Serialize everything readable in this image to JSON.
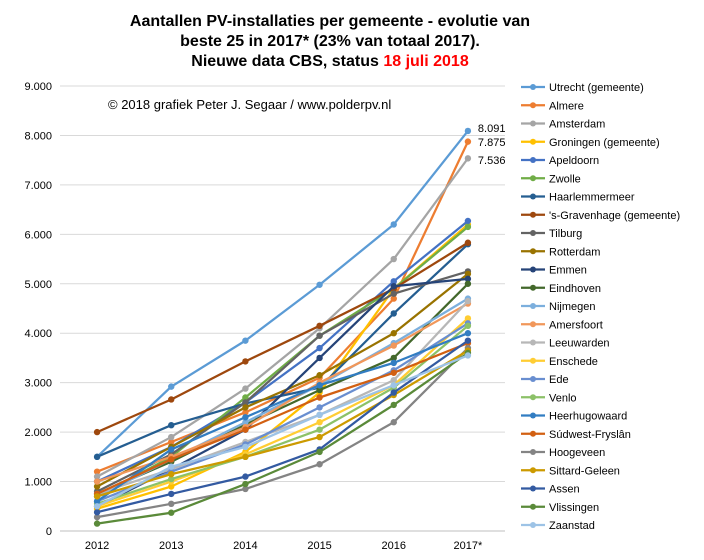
{
  "chart_data": {
    "type": "line",
    "title_line1": "Aantallen PV-installaties  per gemeente - evolutie van",
    "title_line2": "beste 25 in 2017* (23% van totaal 2017).",
    "title_line3_prefix": "Nieuwe data CBS, status ",
    "title_line3_date": "18 juli 2018",
    "credit": "© 2018  grafiek Peter J. Segaar / www.polderpv.nl",
    "categories": [
      "2012",
      "2013",
      "2014",
      "2015",
      "2016",
      "2017*"
    ],
    "ylim": [
      0,
      9000
    ],
    "yticks": [
      {
        "value": 0,
        "label": "0"
      },
      {
        "value": 1000,
        "label": "1.000"
      },
      {
        "value": 2000,
        "label": "2.000"
      },
      {
        "value": 3000,
        "label": "3.000"
      },
      {
        "value": 4000,
        "label": "4.000"
      },
      {
        "value": 5000,
        "label": "5.000"
      },
      {
        "value": 6000,
        "label": "6.000"
      },
      {
        "value": 7000,
        "label": "7.000"
      },
      {
        "value": 8000,
        "label": "8.000"
      },
      {
        "value": 9000,
        "label": "9.000"
      }
    ],
    "grid": true,
    "legend_position": "right",
    "end_labels": [
      {
        "series": 0,
        "label": "8.091"
      },
      {
        "series": 1,
        "label": "7.875"
      },
      {
        "series": 2,
        "label": "7.536"
      }
    ],
    "series": [
      {
        "name": "Utrecht (gemeente)",
        "color": "#5b9bd5",
        "values": [
          1500,
          2920,
          3850,
          4980,
          6200,
          8091
        ]
      },
      {
        "name": "Almere",
        "color": "#ed7d31",
        "values": [
          1200,
          1800,
          2400,
          3100,
          4700,
          7875
        ]
      },
      {
        "name": "Amsterdam",
        "color": "#a5a5a5",
        "values": [
          1100,
          1900,
          2880,
          4100,
          5500,
          7536
        ]
      },
      {
        "name": "Groningen (gemeente)",
        "color": "#ffc000",
        "values": [
          450,
          900,
          1600,
          2800,
          4900,
          6200
        ]
      },
      {
        "name": "Apeldoorn",
        "color": "#4472c4",
        "values": [
          1000,
          1700,
          2600,
          3700,
          5050,
          6270
        ]
      },
      {
        "name": "Zwolle",
        "color": "#70ad47",
        "values": [
          700,
          1500,
          2700,
          3950,
          4900,
          6150
        ]
      },
      {
        "name": "Haarlemmermeer",
        "color": "#255e91",
        "values": [
          1500,
          2140,
          2580,
          2900,
          4400,
          5800
        ]
      },
      {
        "name": "'s-Gravenhage (gemeente)",
        "color": "#9e480e",
        "values": [
          2000,
          2660,
          3430,
          4150,
          4900,
          5830
        ]
      },
      {
        "name": "Tilburg",
        "color": "#636363",
        "values": [
          800,
          1550,
          2600,
          3950,
          4800,
          5250
        ]
      },
      {
        "name": "Rotterdam",
        "color": "#997300",
        "values": [
          900,
          1700,
          2500,
          3150,
          4000,
          5200
        ]
      },
      {
        "name": "Emmen",
        "color": "#264478",
        "values": [
          500,
          1250,
          2050,
          3500,
          4950,
          5100
        ]
      },
      {
        "name": "Eindhoven",
        "color": "#43682b",
        "values": [
          750,
          1400,
          2150,
          2850,
          3500,
          5000
        ]
      },
      {
        "name": "Nijmegen",
        "color": "#7cafdd",
        "values": [
          700,
          1450,
          2200,
          2950,
          3800,
          4700
        ]
      },
      {
        "name": "Amersfoort",
        "color": "#f1975a",
        "values": [
          1000,
          1500,
          2100,
          3000,
          3750,
          4600
        ]
      },
      {
        "name": "Leeuwarden",
        "color": "#b7b7b7",
        "values": [
          750,
          1250,
          1800,
          2350,
          3050,
          4650
        ]
      },
      {
        "name": "Enschede",
        "color": "#ffcd33",
        "values": [
          500,
          1000,
          1550,
          2200,
          2950,
          4300
        ]
      },
      {
        "name": "Ede",
        "color": "#698ed0",
        "values": [
          600,
          1200,
          1750,
          2500,
          3250,
          4200
        ]
      },
      {
        "name": "Venlo",
        "color": "#8cc168",
        "values": [
          550,
          1050,
          1500,
          2050,
          2900,
          4150
        ]
      },
      {
        "name": "Heerhugowaard",
        "color": "#327dc2",
        "values": [
          600,
          1650,
          2300,
          2950,
          3400,
          4000
        ]
      },
      {
        "name": "Súdwest-Fryslân",
        "color": "#d26012",
        "values": [
          750,
          1450,
          2050,
          2700,
          3200,
          3800
        ]
      },
      {
        "name": "Hoogeveen",
        "color": "#848484",
        "values": [
          280,
          550,
          850,
          1350,
          2200,
          3700
        ]
      },
      {
        "name": "Sittard-Geleen",
        "color": "#cc9a00",
        "values": [
          700,
          1150,
          1500,
          1900,
          2750,
          3650
        ]
      },
      {
        "name": "Assen",
        "color": "#335aa1",
        "values": [
          380,
          750,
          1100,
          1650,
          2800,
          3850
        ]
      },
      {
        "name": "Vlissingen",
        "color": "#5a8a39",
        "values": [
          150,
          370,
          950,
          1600,
          2550,
          3600
        ]
      },
      {
        "name": "Zaanstad",
        "color": "#9dc3e6",
        "values": [
          500,
          1300,
          1700,
          2350,
          2950,
          3550
        ]
      }
    ]
  }
}
